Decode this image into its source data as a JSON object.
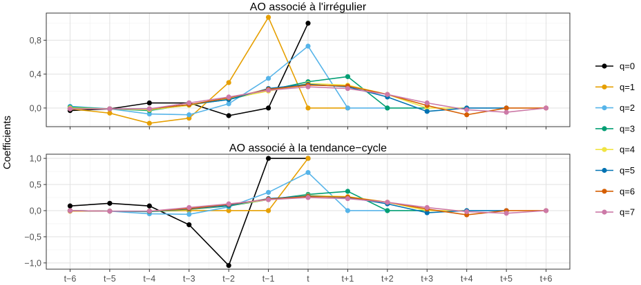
{
  "chart_data": {
    "type": "line",
    "ylabel": "Coefficients",
    "x": [
      "t−6",
      "t−5",
      "t−4",
      "t−3",
      "t−2",
      "t−1",
      "t",
      "t+1",
      "t+2",
      "t+3",
      "t+4",
      "t+5",
      "t+6"
    ],
    "legend": {
      "position": "right"
    },
    "series_styles": [
      {
        "name": "q=0",
        "color": "#000000"
      },
      {
        "name": "q=1",
        "color": "#E69F00"
      },
      {
        "name": "q=2",
        "color": "#56B4E9"
      },
      {
        "name": "q=3",
        "color": "#009E73"
      },
      {
        "name": "q=4",
        "color": "#F0E442"
      },
      {
        "name": "q=5",
        "color": "#0072B2"
      },
      {
        "name": "q=6",
        "color": "#D55E00"
      },
      {
        "name": "q=7",
        "color": "#CC79A7"
      }
    ],
    "panels": [
      {
        "title": "AO associé à l'irrégulier",
        "ylim": [
          -0.22,
          1.12
        ],
        "yticks": [
          0.0,
          0.4,
          0.8
        ],
        "ytick_labels": [
          "0,0",
          "0,4",
          "0,8"
        ],
        "series": [
          {
            "name": "q=0",
            "values": [
              -0.03,
              -0.01,
              0.06,
              0.06,
              -0.09,
              0.0,
              1.0,
              null,
              null,
              null,
              null,
              null,
              null
            ]
          },
          {
            "name": "q=1",
            "values": [
              -0.01,
              -0.06,
              -0.18,
              -0.12,
              0.3,
              1.07,
              0.0,
              0.0,
              null,
              null,
              null,
              null,
              null
            ]
          },
          {
            "name": "q=2",
            "values": [
              0.02,
              -0.01,
              -0.07,
              -0.08,
              0.05,
              0.35,
              0.73,
              0.0,
              0.0,
              null,
              null,
              null,
              null
            ]
          },
          {
            "name": "q=3",
            "values": [
              0.01,
              -0.01,
              -0.03,
              0.04,
              0.1,
              0.21,
              0.31,
              0.37,
              0.0,
              0.0,
              null,
              null,
              null
            ]
          },
          {
            "name": "q=4",
            "values": [
              0.0,
              -0.01,
              -0.02,
              0.03,
              0.11,
              0.2,
              0.29,
              0.27,
              0.16,
              0.0,
              0.0,
              null,
              null
            ]
          },
          {
            "name": "q=5",
            "values": [
              -0.01,
              -0.01,
              -0.01,
              0.04,
              0.1,
              0.23,
              0.28,
              0.25,
              0.13,
              -0.04,
              0.0,
              0.0,
              null
            ]
          },
          {
            "name": "q=6",
            "values": [
              -0.01,
              -0.01,
              -0.01,
              0.04,
              0.12,
              0.22,
              0.27,
              0.26,
              0.16,
              0.03,
              -0.08,
              0.0,
              0.0
            ]
          },
          {
            "name": "q=7",
            "values": [
              -0.01,
              -0.01,
              -0.01,
              0.06,
              0.13,
              0.21,
              0.25,
              0.23,
              0.16,
              0.06,
              -0.02,
              -0.05,
              0.0
            ]
          }
        ]
      },
      {
        "title": "AO associé à la tendance−cycle",
        "ylim": [
          -1.12,
          1.08
        ],
        "yticks": [
          1.0,
          0.5,
          0.0,
          -0.5,
          -1.0
        ],
        "ytick_labels": [
          "1,0",
          "0,5",
          "0,0",
          "−0,5",
          "−1,0"
        ],
        "series": [
          {
            "name": "q=0",
            "values": [
              0.09,
              0.14,
              0.09,
              -0.27,
              -1.05,
              1.0,
              1.0,
              null,
              null,
              null,
              null,
              null,
              null
            ]
          },
          {
            "name": "q=1",
            "values": [
              -0.01,
              -0.01,
              -0.01,
              0.0,
              0.0,
              0.0,
              1.0,
              null,
              null,
              null,
              null,
              null,
              null
            ]
          },
          {
            "name": "q=2",
            "values": [
              0.0,
              -0.01,
              -0.06,
              -0.07,
              0.07,
              0.35,
              0.73,
              0.0,
              0.0,
              null,
              null,
              null,
              null
            ]
          },
          {
            "name": "q=3",
            "values": [
              0.0,
              -0.01,
              -0.02,
              0.02,
              0.09,
              0.21,
              0.31,
              0.37,
              0.0,
              0.0,
              null,
              null,
              null
            ]
          },
          {
            "name": "q=4",
            "values": [
              0.0,
              -0.01,
              -0.01,
              0.02,
              0.1,
              0.21,
              0.29,
              0.27,
              0.16,
              0.0,
              0.0,
              null,
              null
            ]
          },
          {
            "name": "q=5",
            "values": [
              0.0,
              -0.01,
              -0.01,
              0.03,
              0.1,
              0.23,
              0.28,
              0.25,
              0.13,
              -0.04,
              0.0,
              0.0,
              null
            ]
          },
          {
            "name": "q=6",
            "values": [
              0.0,
              -0.01,
              -0.01,
              0.04,
              0.12,
              0.22,
              0.27,
              0.26,
              0.16,
              0.03,
              -0.08,
              0.0,
              0.0
            ]
          },
          {
            "name": "q=7",
            "values": [
              0.0,
              -0.01,
              -0.01,
              0.06,
              0.13,
              0.21,
              0.25,
              0.23,
              0.16,
              0.06,
              -0.02,
              -0.05,
              0.0
            ]
          }
        ]
      }
    ]
  }
}
